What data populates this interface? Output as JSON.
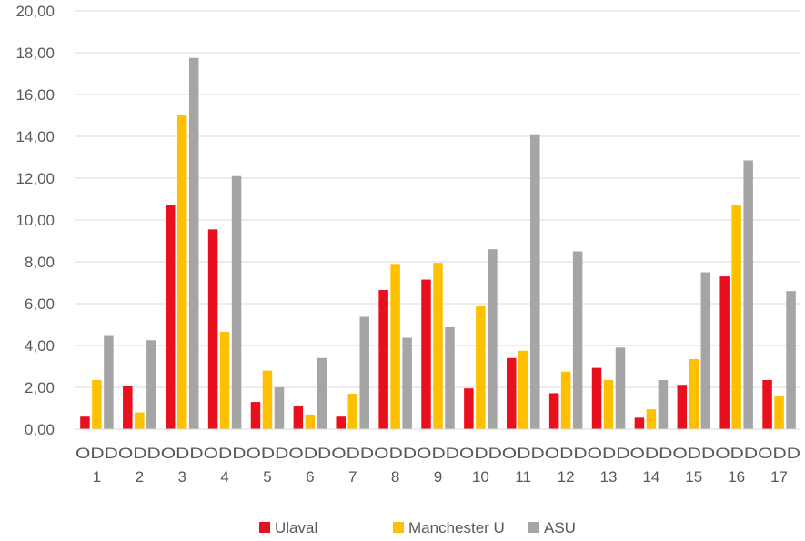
{
  "chart_data": {
    "type": "bar",
    "title": "",
    "xlabel": "",
    "ylabel": "",
    "ylim": [
      0,
      20
    ],
    "yticks": [
      "0,00",
      "2,00",
      "4,00",
      "6,00",
      "8,00",
      "10,00",
      "12,00",
      "14,00",
      "16,00",
      "18,00",
      "20,00"
    ],
    "grid": true,
    "legend_position": "bottom",
    "categories": [
      {
        "top": "ODD",
        "bottom": "1"
      },
      {
        "top": "ODD",
        "bottom": "2"
      },
      {
        "top": "ODD",
        "bottom": "3"
      },
      {
        "top": "ODD",
        "bottom": "4"
      },
      {
        "top": "ODD",
        "bottom": "5"
      },
      {
        "top": "ODD",
        "bottom": "6"
      },
      {
        "top": "ODD",
        "bottom": "7"
      },
      {
        "top": "ODD",
        "bottom": "8"
      },
      {
        "top": "ODD",
        "bottom": "9"
      },
      {
        "top": "ODD",
        "bottom": "10"
      },
      {
        "top": "ODD",
        "bottom": "11"
      },
      {
        "top": "ODD",
        "bottom": "12"
      },
      {
        "top": "ODD",
        "bottom": "13"
      },
      {
        "top": "ODD",
        "bottom": "14"
      },
      {
        "top": "ODD",
        "bottom": "15"
      },
      {
        "top": "ODD",
        "bottom": "16"
      },
      {
        "top": "ODD",
        "bottom": "17"
      }
    ],
    "series": [
      {
        "name": "Ulaval",
        "color": "#e8101c",
        "values": [
          0.6,
          2.05,
          10.7,
          9.55,
          1.3,
          1.12,
          0.6,
          6.65,
          7.15,
          1.95,
          3.4,
          1.72,
          2.93,
          0.55,
          2.12,
          7.3,
          2.35
        ]
      },
      {
        "name": "Manchester U",
        "color": "#ffc000",
        "values": [
          2.35,
          0.8,
          15.0,
          4.65,
          2.8,
          0.7,
          1.7,
          7.9,
          7.95,
          5.9,
          3.75,
          2.75,
          2.35,
          0.95,
          3.35,
          10.7,
          1.6
        ]
      },
      {
        "name": "ASU",
        "color": "#a5a5a5",
        "values": [
          4.5,
          4.25,
          17.75,
          12.1,
          2.0,
          3.4,
          5.37,
          4.37,
          4.87,
          8.6,
          14.1,
          8.5,
          3.9,
          2.35,
          7.5,
          12.85,
          6.6
        ]
      }
    ],
    "gridline_color": "#d9d9d9"
  }
}
